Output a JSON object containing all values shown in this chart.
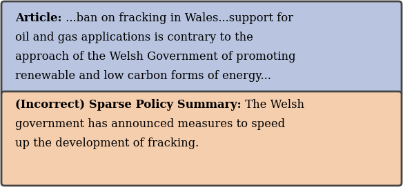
{
  "fig_width": 5.84,
  "fig_height": 2.72,
  "dpi": 100,
  "box1_bg": "#b8c4e0",
  "box2_bg": "#f5cead",
  "border_color": "#444444",
  "box1_label_bold": "Article:",
  "box1_line1_rest": " ...ban on fracking in Wales...support for",
  "box1_line2": "oil and gas applications is contrary to the",
  "box1_line3": "approach of the Welsh Government of promoting",
  "box1_line4": "renewable and low carbon forms of energy...",
  "box2_label_bold": "(Incorrect) Sparse Policy Summary:",
  "box2_line1_rest": " The Welsh",
  "box2_line2": "government has announced measures to speed",
  "box2_line3": "up the development of fracking.",
  "font_size": 11.8,
  "text_color": "#000000",
  "border_lw": 2.0
}
